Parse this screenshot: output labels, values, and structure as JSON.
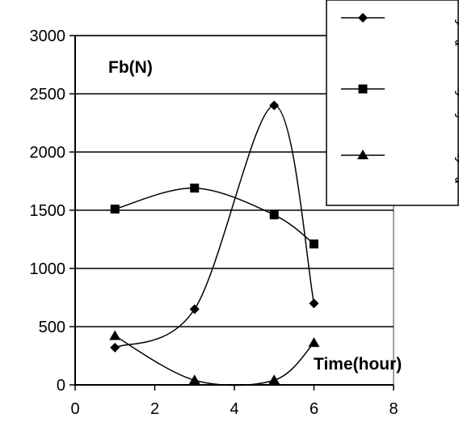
{
  "chart_data": {
    "type": "line",
    "title": "",
    "ylabel": "Fb(N)",
    "xlabel": "Time(hour)",
    "xlim": [
      0,
      8
    ],
    "ylim": [
      0,
      3000
    ],
    "x_ticks": [
      "0",
      "2",
      "4",
      "6",
      "8"
    ],
    "y_ticks": [
      "0",
      "500",
      "1000",
      "1500",
      "2000",
      "2500",
      "3000"
    ],
    "grid": "horizontal",
    "legend_position": "top-right",
    "series": [
      {
        "name_lines": [
          "تبريد طبيعي",
          "بالهواء"
        ],
        "marker": "diamond",
        "color": "#000000",
        "points": [
          [
            1,
            320
          ],
          [
            3,
            650
          ],
          [
            5,
            2400
          ],
          [
            6,
            700
          ]
        ]
      },
      {
        "name_lines": [
          "تبريد قسري",
          "بالزيت"
        ],
        "marker": "square",
        "color": "#000000",
        "points": [
          [
            1,
            1510
          ],
          [
            3,
            1690
          ],
          [
            5,
            1460
          ],
          [
            6,
            1210
          ]
        ]
      },
      {
        "name_lines": [
          "تبريد قسري",
          "بالماء"
        ],
        "marker": "triangle",
        "color": "#000000",
        "points": [
          [
            1,
            420
          ],
          [
            3,
            40
          ],
          [
            5,
            40
          ],
          [
            6,
            360
          ]
        ]
      }
    ]
  }
}
